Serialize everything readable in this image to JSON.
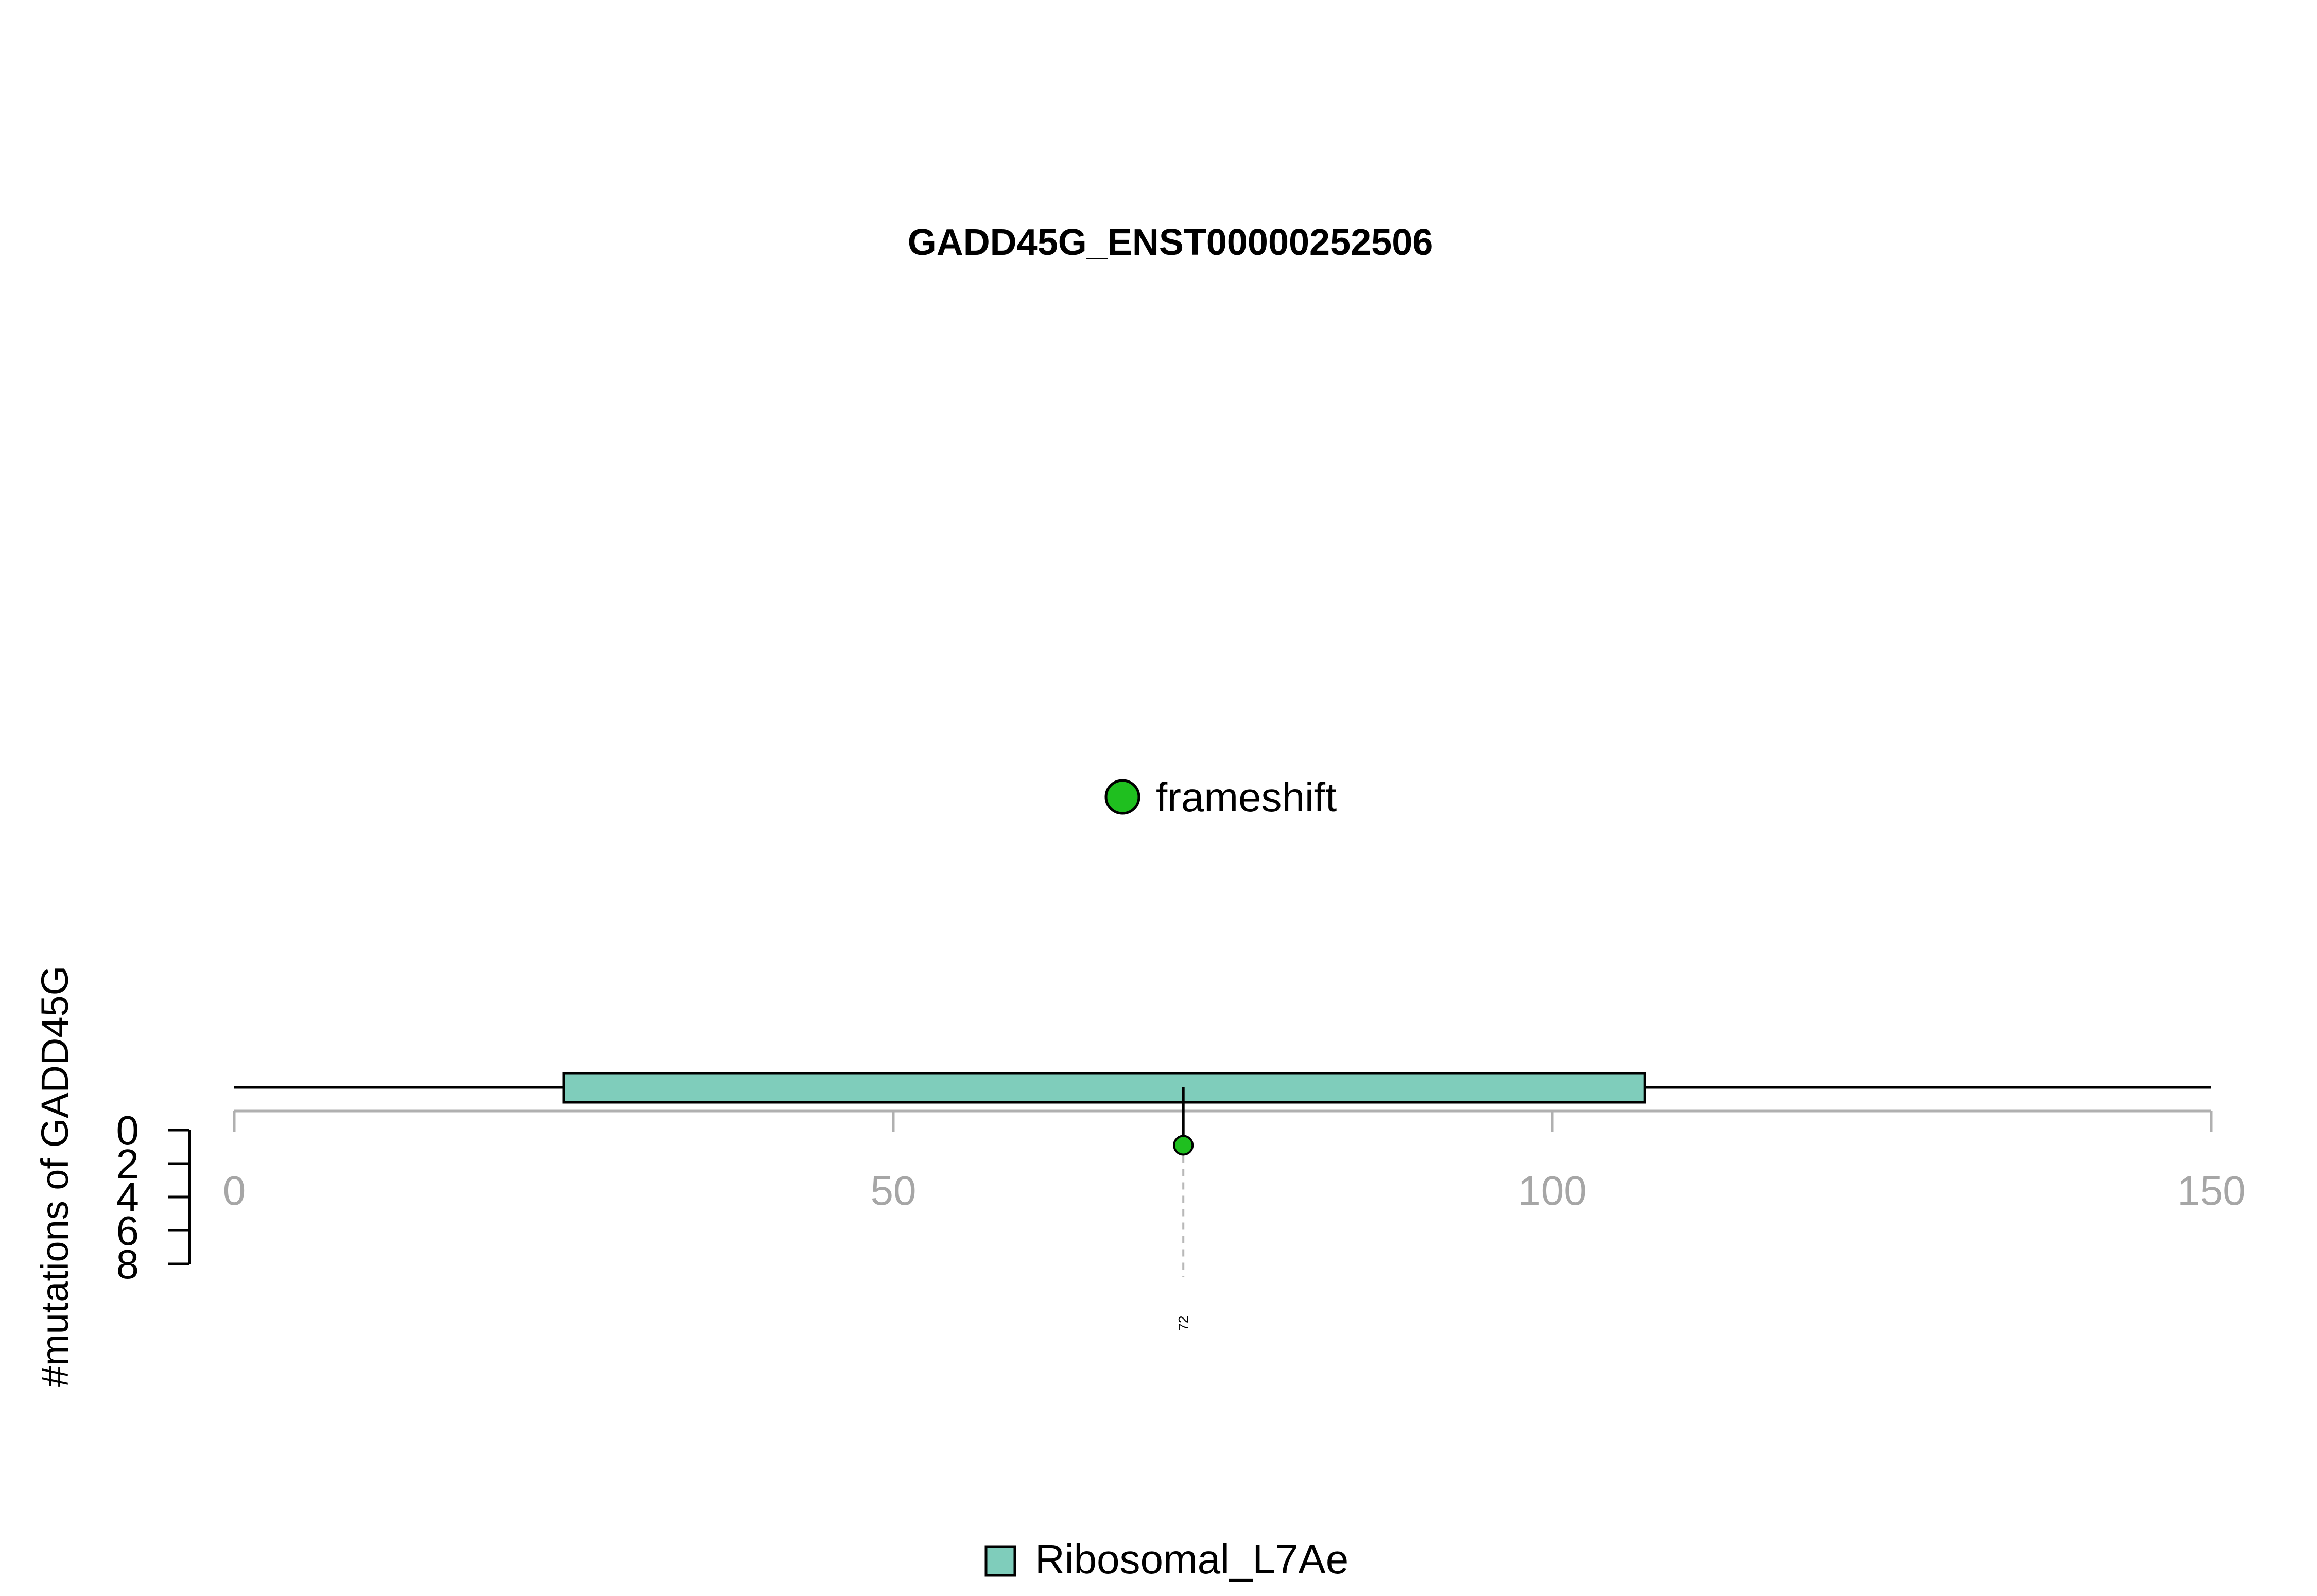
{
  "chart_data": {
    "type": "lollipop",
    "title": "GADD45G_ENST00000252506",
    "ylabel": "#mutations of GADD45G",
    "xlim": [
      0,
      150
    ],
    "x_ticks": [
      0,
      50,
      100,
      150
    ],
    "y_ticks": [
      0,
      2,
      4,
      6,
      8
    ],
    "ylim": [
      0,
      8
    ],
    "protein_length": 150,
    "domains": [
      {
        "name": "Ribosomal_L7Ae",
        "start": 25,
        "end": 107,
        "color": "#7fcdbb"
      }
    ],
    "mutations": [
      {
        "position": 72,
        "count": 1,
        "type": "frameshift",
        "label": "72",
        "color": "#1fbf1f"
      }
    ],
    "legend_mutation_types": [
      {
        "name": "frameshift",
        "color": "#1fbf1f"
      }
    ],
    "legend_domains": [
      {
        "name": "Ribosomal_L7Ae",
        "color": "#7fcdbb"
      }
    ]
  }
}
